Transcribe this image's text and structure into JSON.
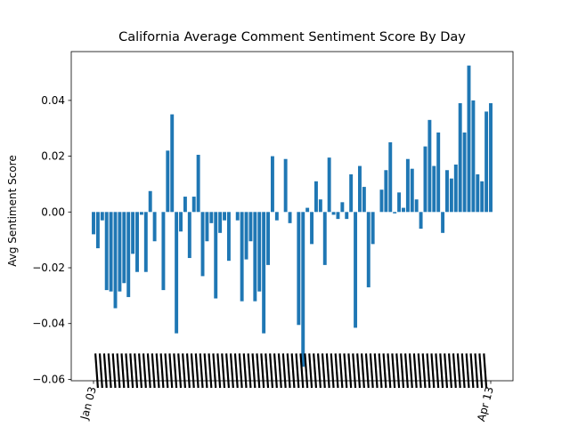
{
  "chart_data": {
    "type": "bar",
    "title": "California Average Comment Sentiment Score By Day",
    "xlabel": "",
    "ylabel": "Avg Sentiment Score",
    "ylim": [
      -0.0605,
      0.0575
    ],
    "yticks": [
      -0.06,
      -0.04,
      -0.02,
      0.0,
      0.02,
      0.04
    ],
    "ytick_labels": [
      "−0.06",
      "−0.04",
      "−0.02",
      "0.00",
      "0.02",
      "0.04"
    ],
    "grid": false,
    "bar_color": "#1f77b4",
    "x_tick_labels_note": "Dense overlapping rotated date labels (illegible) beginning with \"Jan 03\" and ending with \"Apr 13\"",
    "x_first_label": "Jan 03",
    "x_last_label": "Apr 13",
    "values": [
      -0.008,
      -0.013,
      -0.003,
      -0.028,
      -0.0285,
      -0.0345,
      -0.0285,
      -0.0255,
      -0.0305,
      -0.015,
      -0.0215,
      -0.001,
      -0.0215,
      0.0075,
      -0.0105,
      0.0,
      -0.028,
      0.022,
      0.035,
      -0.0435,
      -0.007,
      0.0055,
      -0.0165,
      0.0055,
      0.0205,
      -0.023,
      -0.0105,
      -0.004,
      -0.031,
      -0.0075,
      -0.003,
      -0.0175,
      0.0,
      -0.003,
      -0.032,
      -0.017,
      -0.0105,
      -0.032,
      -0.0285,
      -0.0435,
      -0.019,
      0.02,
      -0.003,
      0.0,
      0.019,
      -0.004,
      0.0,
      -0.0405,
      -0.0555,
      0.0015,
      -0.0115,
      0.011,
      0.0045,
      -0.019,
      0.0195,
      -0.001,
      -0.0025,
      0.0035,
      -0.0025,
      0.0135,
      -0.0415,
      0.0165,
      0.009,
      -0.027,
      -0.0115,
      0.0,
      0.008,
      0.015,
      0.025,
      -0.0005,
      0.007,
      0.0015,
      0.019,
      0.0155,
      0.0045,
      -0.006,
      0.0235,
      0.033,
      0.0165,
      0.0285,
      -0.0075,
      0.015,
      0.012,
      0.017,
      0.039,
      0.0285,
      0.0525,
      0.04,
      0.0135,
      0.011,
      0.036,
      0.039
    ]
  }
}
